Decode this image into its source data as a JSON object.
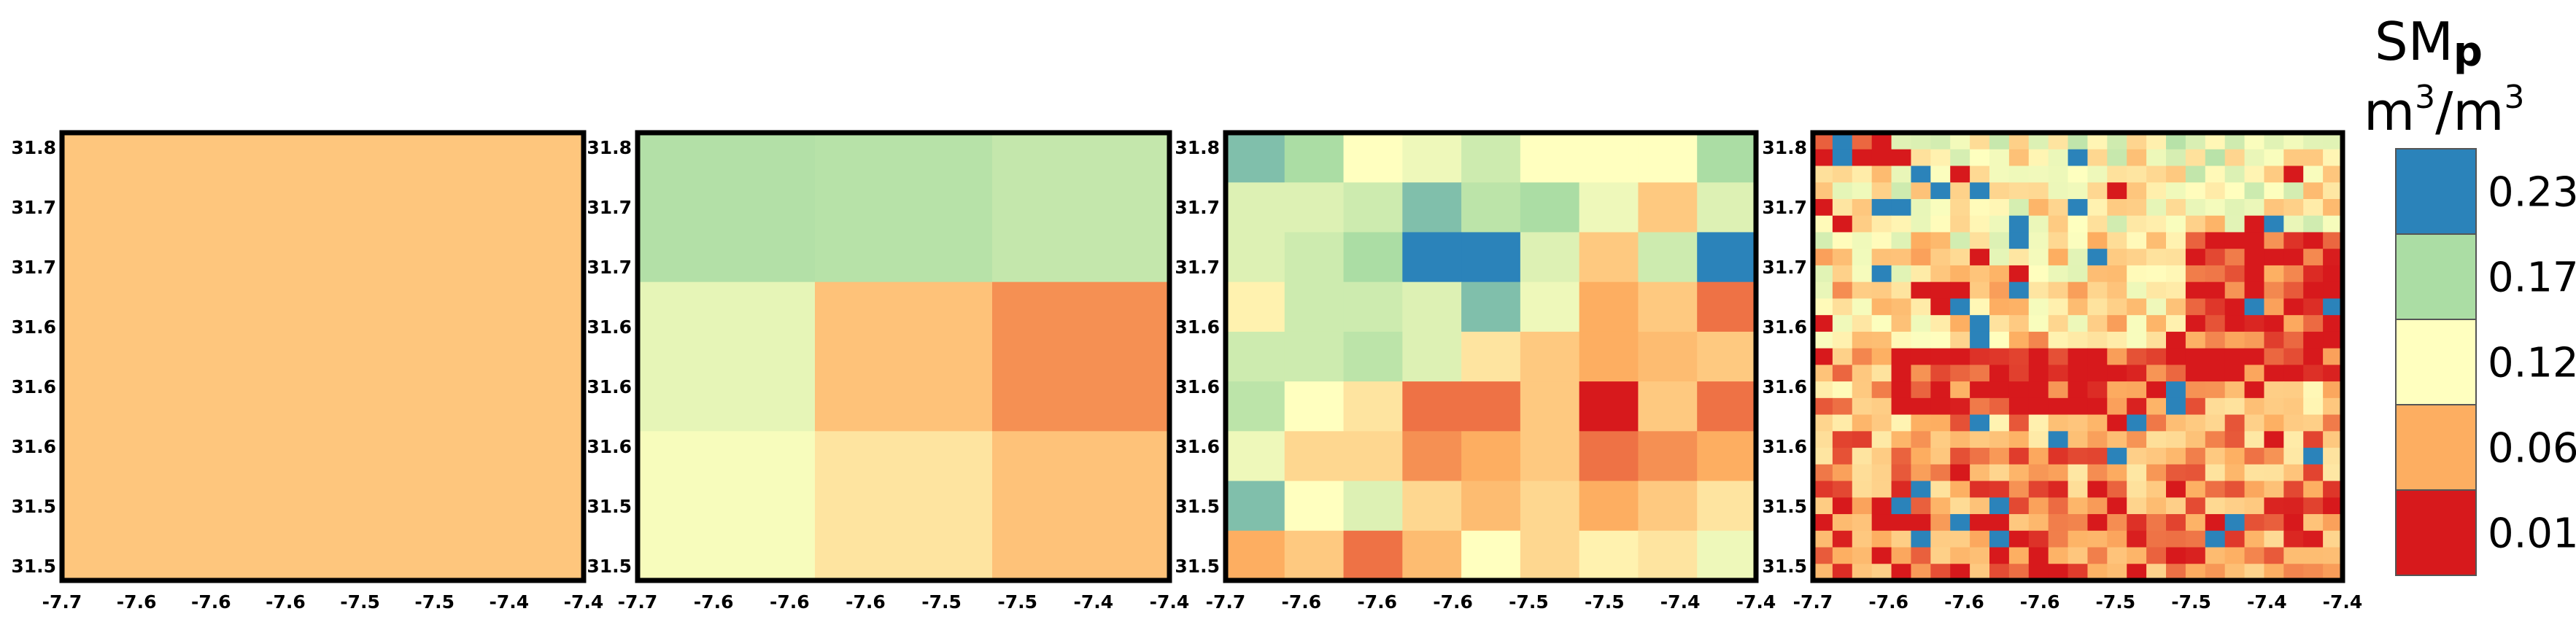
{
  "colorbar": {
    "title_main": "SM",
    "title_sub": "p",
    "unit_base": "m",
    "unit_sup": "3",
    "unit_slash": "/m",
    "unit_sup2": "3",
    "labels": [
      "0.23",
      "0.17",
      "0.12",
      "0.06",
      "0.01"
    ],
    "colors": [
      "#2b83ba",
      "#abdda4",
      "#ffffbf",
      "#fdae61",
      "#d7191c"
    ],
    "range": [
      0.01,
      0.23
    ]
  },
  "chart_data": [
    {
      "type": "heatmap",
      "panel": 1,
      "x_ticks": [
        "-7.7",
        "-7.6",
        "-7.6",
        "-7.6",
        "-7.5",
        "-7.5",
        "-7.4",
        "-7.4"
      ],
      "y_ticks": [
        "31.8",
        "31.7",
        "31.7",
        "31.6",
        "31.6",
        "31.6",
        "31.5",
        "31.5"
      ],
      "rows": 1,
      "cols": 1,
      "values": [
        [
          0.078
        ]
      ]
    },
    {
      "type": "heatmap",
      "panel": 2,
      "x_ticks": [
        "-7.7",
        "-7.6",
        "-7.6",
        "-7.6",
        "-7.5",
        "-7.5",
        "-7.4",
        "-7.4"
      ],
      "y_ticks": [
        "31.8",
        "31.7",
        "31.7",
        "31.6",
        "31.6",
        "31.6",
        "31.5",
        "31.5"
      ],
      "rows": 3,
      "cols": 3,
      "values": [
        [
          0.165,
          0.163,
          0.155
        ],
        [
          0.135,
          0.075,
          0.05
        ],
        [
          0.125,
          0.1,
          0.075
        ]
      ]
    },
    {
      "type": "heatmap",
      "panel": 3,
      "x_ticks": [
        "-7.7",
        "-7.6",
        "-7.6",
        "-7.6",
        "-7.5",
        "-7.5",
        "-7.4",
        "-7.4"
      ],
      "y_ticks": [
        "31.8",
        "31.7",
        "31.7",
        "31.6",
        "31.6",
        "31.6",
        "31.5",
        "31.5"
      ],
      "rows": 9,
      "cols": 9,
      "values": [
        [
          0.19,
          0.17,
          0.12,
          0.13,
          0.15,
          0.12,
          0.12,
          0.12,
          0.17
        ],
        [
          0.14,
          0.14,
          0.15,
          0.19,
          0.16,
          0.17,
          0.13,
          0.08,
          0.14
        ],
        [
          0.14,
          0.15,
          0.17,
          0.23,
          0.23,
          0.14,
          0.08,
          0.15,
          0.23
        ],
        [
          0.11,
          0.15,
          0.15,
          0.14,
          0.19,
          0.13,
          0.06,
          0.08,
          0.04
        ],
        [
          0.15,
          0.15,
          0.16,
          0.14,
          0.1,
          0.08,
          0.06,
          0.07,
          0.08
        ],
        [
          0.16,
          0.12,
          0.1,
          0.04,
          0.04,
          0.08,
          0.01,
          0.08,
          0.04
        ],
        [
          0.13,
          0.09,
          0.09,
          0.05,
          0.06,
          0.08,
          0.04,
          0.05,
          0.06
        ],
        [
          0.19,
          0.12,
          0.14,
          0.09,
          0.07,
          0.09,
          0.06,
          0.08,
          0.1
        ],
        [
          0.06,
          0.08,
          0.04,
          0.07,
          0.12,
          0.09,
          0.11,
          0.1,
          0.13
        ]
      ]
    },
    {
      "type": "heatmap",
      "panel": 4,
      "x_ticks": [
        "-7.7",
        "-7.6",
        "-7.6",
        "-7.6",
        "-7.5",
        "-7.5",
        "-7.4",
        "-7.4"
      ],
      "y_ticks": [
        "31.8",
        "31.7",
        "31.7",
        "31.6",
        "31.6",
        "31.6",
        "31.5",
        "31.5"
      ],
      "rows": 27,
      "cols": 27,
      "generated": true
    }
  ]
}
